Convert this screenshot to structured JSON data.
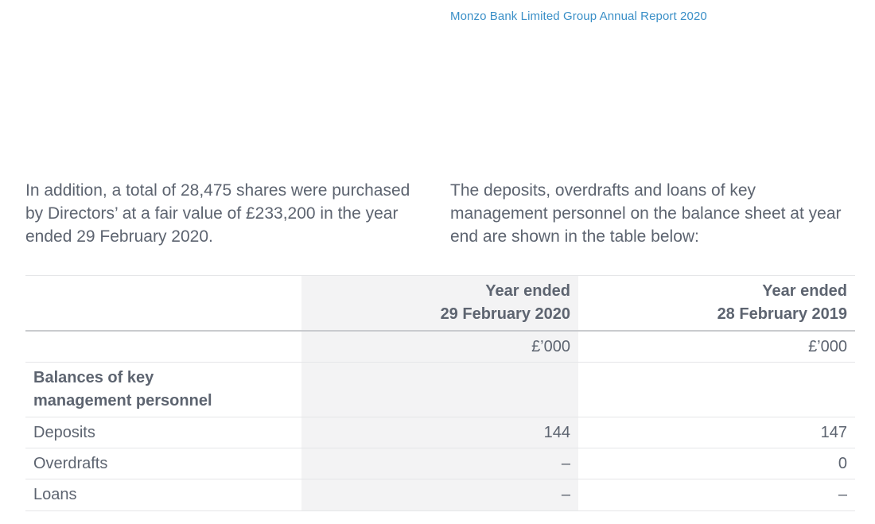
{
  "header": {
    "report_title": "Monzo Bank Limited Group Annual Report 2020"
  },
  "paragraphs": {
    "left": "In addition, a total of 28,475 shares were purchased by Directors’ at a fair value of £233,200 in the year ended 29 February 2020.",
    "right": "The deposits, overdrafts and loans of key management personnel on the balance sheet at year end are shown in the table below:"
  },
  "table": {
    "col1_header_line1": "Year ended",
    "col1_header_line2": "29 February 2020",
    "col2_header_line1": "Year ended",
    "col2_header_line2": "28 February 2019",
    "units_1": "£’000",
    "units_2": "£’000",
    "section_label_line1": "Balances of key",
    "section_label_line2": "management personnel",
    "rows": [
      {
        "label": "Deposits",
        "v2020": "144",
        "v2019": "147"
      },
      {
        "label": "Overdrafts",
        "v2020": "–",
        "v2019": "0"
      },
      {
        "label": "Loans",
        "v2020": "–",
        "v2019": "–"
      }
    ]
  }
}
